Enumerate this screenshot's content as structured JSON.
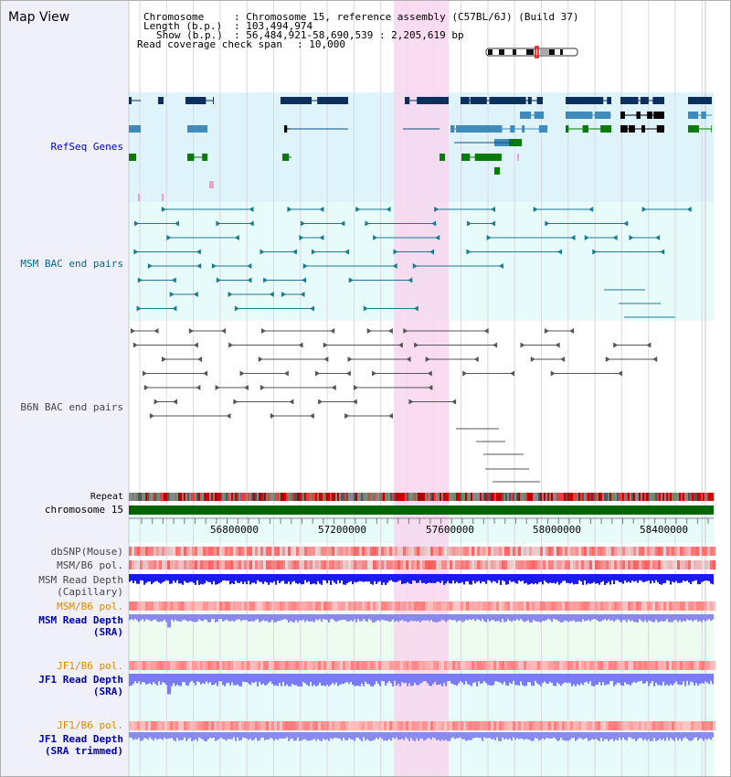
{
  "app": {
    "title": "Map View"
  },
  "info": {
    "chromosome_label": "Chromosome",
    "chromosome_value": ": Chromosome 15, reference assembly (C57BL/6J) (Build 37)",
    "length_label": "Length (b.p.)",
    "length_value": ": 103,494,974",
    "show_label": "Show (b.p.)",
    "show_value": ": 56,484,921-58,690,539 : 2,205,619 bp",
    "span_label": "Read coverage check span",
    "span_value": ": 10,000"
  },
  "tracks": {
    "refseq": "RefSeq Genes",
    "msm_bac": "MSM BAC end pairs",
    "b6n_bac": "B6N BAC end pairs",
    "repeat": "Repeat",
    "chromosome": "chromosome 15",
    "dbsnp": "dbSNP(Mouse)",
    "msm_b6_pol": "MSM/B6 pol.",
    "msm_depth_cap_1": "MSM Read Depth",
    "msm_depth_cap_2": "(Capillary)",
    "msm_b6_pol2": "MSM/B6 pol.",
    "msm_depth_sra_1": "MSM Read Depth",
    "msm_depth_sra_2": "(SRA)",
    "jf1_b6_pol": "JF1/B6 pol.",
    "jf1_depth_sra_1": "JF1 Read Depth",
    "jf1_depth_sra_2": "(SRA)",
    "jf1_b6_pol2": "JF1/B6 pol.",
    "jf1_depth_trim_1": "JF1 Read Depth",
    "jf1_depth_trim_2": "(SRA trimmed)"
  },
  "axis": {
    "ticks": [
      "56800000",
      "57200000",
      "57600000",
      "58000000",
      "58400000"
    ]
  },
  "colors": {
    "panel_bg": "#f0f0fa",
    "refseq_bg": "#dff3fb",
    "msm_bg": "#e8fbfb",
    "highlight": "#f8d6ee",
    "refseq_label": "#0000cc",
    "msm_label": "#006a8a",
    "b6n_label": "#444444",
    "pol_orange": "#e08a00",
    "depth_blue": "#0000aa",
    "chrom_green": "#006400"
  }
}
